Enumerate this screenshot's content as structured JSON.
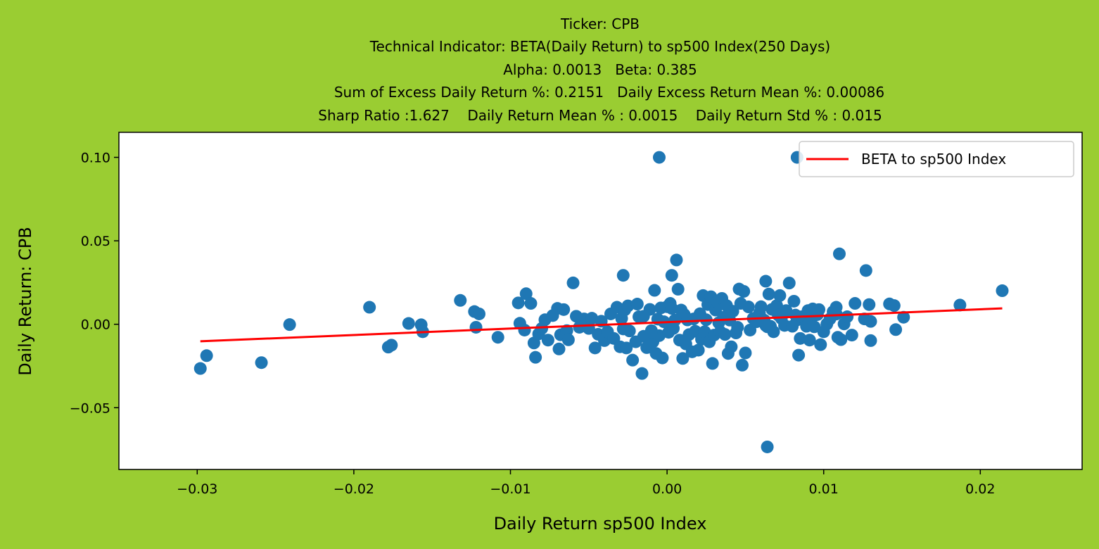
{
  "colors": {
    "figure_background": "#9acd32",
    "axes_background": "#ffffff",
    "points": "#1f77b4",
    "beta_line": "#ff0000"
  },
  "chart_data": {
    "type": "scatter",
    "title": [
      "Ticker: CPB",
      "Technical Indicator: BETA(Daily Return) to sp500 Index(250 Days)",
      "Alpha: 0.0013   Beta: 0.385",
      "Sum of Excess Daily Return %: 0.2151   Daily Excess Return Mean %: 0.00086",
      "Sharp Ratio :1.627    Daily Return Mean % : 0.0015    Daily Return Std % : 0.015"
    ],
    "xlabel": "Daily Return sp500 Index",
    "ylabel": "Daily Return: CPB",
    "xlim": [
      -0.035,
      0.0265
    ],
    "ylim": [
      -0.087,
      0.115
    ],
    "xticks": [
      -0.03,
      -0.02,
      -0.01,
      0.0,
      0.01,
      0.02
    ],
    "xtick_labels": [
      "−0.03",
      "−0.02",
      "−0.01",
      "0.00",
      "0.01",
      "0.02"
    ],
    "yticks": [
      0.1,
      0.05,
      0.0,
      -0.05
    ],
    "ytick_labels": [
      "0.10",
      "0.05",
      "0.00",
      "−0.05"
    ],
    "grid": false,
    "legend": {
      "placement": "top-right",
      "entries": [
        "BETA to sp500 Index"
      ]
    },
    "beta_line": {
      "name": "BETA to sp500 Index",
      "x": [
        -0.0298,
        0.0214
      ],
      "y": [
        -0.0102,
        0.0095
      ]
    },
    "points": {
      "x": [
        -0.0298,
        -0.0294,
        -0.0259,
        -0.0241,
        -0.019,
        -0.0178,
        -0.0176,
        -0.0165,
        -0.0157,
        -0.0156,
        -0.0132,
        -0.0123,
        -0.0122,
        -0.012,
        -0.0108,
        -0.0095,
        -0.0094,
        -0.0091,
        -0.009,
        -0.0087,
        -0.0085,
        -0.0084,
        -0.0082,
        -0.008,
        -0.0078,
        -0.0076,
        -0.0073,
        -0.007,
        -0.0069,
        -0.0068,
        -0.0066,
        -0.0064,
        -0.0063,
        -0.006,
        -0.0058,
        -0.0056,
        -0.0053,
        -0.005,
        -0.0048,
        -0.0046,
        -0.0044,
        -0.0042,
        -0.004,
        -0.0038,
        -0.0036,
        -0.0034,
        -0.0032,
        -0.003,
        -0.0029,
        -0.0028,
        -0.0027,
        -0.0026,
        -0.0025,
        -0.0024,
        -0.0022,
        -0.002,
        -0.0019,
        -0.0018,
        -0.0016,
        -0.0015,
        -0.0013,
        -0.0011,
        -0.001,
        -0.0009,
        -0.0008,
        -0.0007,
        -0.0006,
        -0.0005,
        -0.0004,
        -0.0003,
        -0.0002,
        0.0,
        0.0001,
        0.0002,
        0.0003,
        0.0004,
        0.0006,
        0.0007,
        0.0008,
        0.0009,
        0.001,
        0.0011,
        0.0012,
        0.0013,
        0.0014,
        0.0016,
        0.0017,
        0.0018,
        0.002,
        0.0021,
        0.0022,
        0.0023,
        0.0024,
        0.0025,
        0.0026,
        0.0027,
        0.0028,
        0.0029,
        0.003,
        0.0031,
        0.0032,
        0.0033,
        0.0034,
        0.0035,
        0.0036,
        0.0037,
        0.0038,
        0.0039,
        0.004,
        0.0041,
        0.0042,
        0.0044,
        0.0045,
        0.0046,
        0.0047,
        0.0048,
        0.0049,
        0.005,
        0.0052,
        0.0053,
        0.0055,
        0.0057,
        0.0059,
        0.006,
        0.0062,
        0.0063,
        0.0064,
        0.0065,
        0.0066,
        0.0067,
        0.0068,
        0.007,
        0.0071,
        0.0072,
        0.0073,
        0.0075,
        0.0076,
        0.0078,
        0.008,
        0.0081,
        0.0082,
        0.0083,
        0.0084,
        0.0085,
        0.0086,
        0.0088,
        0.0089,
        0.009,
        0.0091,
        0.0092,
        0.0093,
        0.0094,
        0.0096,
        0.0097,
        0.0098,
        0.01,
        0.0102,
        0.0104,
        0.0106,
        0.0108,
        0.0109,
        0.011,
        0.0111,
        0.0113,
        0.0115,
        0.0118,
        0.012,
        0.0126,
        0.0127,
        0.0129,
        0.013,
        0.013,
        0.0142,
        0.0145,
        0.0146,
        0.0151,
        0.0187,
        0.0214,
        -0.0005,
        0.0083,
        0.0064,
        0.0005,
        0.0108,
        -0.0028,
        -0.0015,
        0.0003,
        0.0063,
        -0.001
      ],
      "y": [
        -0.0265,
        -0.0188,
        -0.023,
        -0.0002,
        0.0102,
        -0.0137,
        -0.0125,
        0.0005,
        -0.0003,
        -0.0045,
        0.0143,
        0.0076,
        -0.0018,
        0.0062,
        -0.0078,
        0.0128,
        0.0006,
        -0.0035,
        0.0183,
        0.0125,
        -0.0112,
        -0.0198,
        -0.0058,
        -0.0025,
        0.0027,
        -0.0095,
        0.0052,
        0.0095,
        -0.0148,
        -0.0063,
        0.0088,
        -0.0038,
        -0.0093,
        0.0248,
        0.0048,
        -0.0018,
        0.0032,
        -0.0025,
        0.0036,
        -0.0142,
        -0.006,
        0.0018,
        -0.0098,
        -0.0045,
        0.0062,
        -0.0085,
        0.0102,
        -0.0135,
        0.0035,
        0.0293,
        0.0086,
        -0.0142,
        0.011,
        -0.004,
        -0.0215,
        -0.0105,
        0.0121,
        0.0045,
        -0.0295,
        -0.0072,
        -0.014,
        0.0089,
        -0.0038,
        -0.0105,
        0.0203,
        -0.0175,
        0.0031,
        -0.0068,
        0.0098,
        -0.0202,
        0.0015,
        0.0105,
        -0.0048,
        0.0125,
        0.0293,
        -0.0025,
        0.0385,
        0.021,
        -0.0095,
        0.0085,
        -0.0205,
        0.0058,
        -0.0118,
        0.0026,
        -0.0062,
        -0.0165,
        0.0032,
        -0.0042,
        -0.0155,
        0.0063,
        -0.009,
        0.0172,
        -0.0045,
        0.0027,
        0.0118,
        -0.0105,
        0.0165,
        -0.0235,
        -0.0065,
        0.0085,
        0.0135,
        0.0009,
        -0.0045,
        0.0155,
        0.0042,
        -0.0061,
        0.0112,
        -0.0175,
        0.0025,
        -0.0135,
        0.0078,
        -0.0052,
        -0.0018,
        0.0211,
        0.0125,
        -0.0245,
        0.0197,
        -0.0172,
        0.0104,
        -0.0035,
        0.0035,
        0.0015,
        0.0066,
        0.0105,
        0.0025,
        0.0258,
        -0.0015,
        0.0181,
        -0.0012,
        0.0089,
        -0.0045,
        0.0112,
        0.0055,
        0.0172,
        0.0035,
        -0.0007,
        0.0082,
        0.0247,
        -0.0012,
        0.0138,
        0.0055,
        0.0026,
        -0.0185,
        -0.0085,
        0.0045,
        0.0035,
        -0.0012,
        0.0082,
        -0.0095,
        0.0035,
        0.0092,
        -0.0015,
        0.0058,
        0.0088,
        -0.0122,
        -0.0045,
        0.0001,
        0.0032,
        0.0075,
        0.0102,
        -0.0078,
        0.0422,
        -0.0092,
        0.0002,
        0.0045,
        -0.0065,
        0.0125,
        0.0032,
        0.0322,
        0.0118,
        0.0017,
        -0.0098,
        0.0122,
        0.0112,
        -0.0032,
        0.0042,
        0.0115,
        0.0201,
        0.1,
        0.1,
        -0.0735,
        0.0025,
        0.0061,
        -0.0028,
        0.0048,
        0.0095,
        -0.0007,
        -0.0048
      ]
    }
  }
}
